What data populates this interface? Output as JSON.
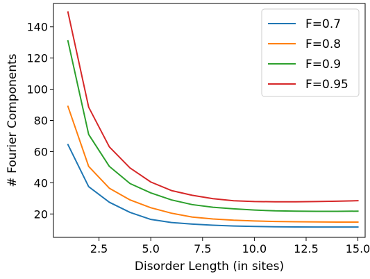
{
  "chart_data": {
    "type": "line",
    "title": "",
    "xlabel": "Disorder Length (in sites)",
    "ylabel": "# Fourier Components",
    "xlim": [
      0.3,
      15.35
    ],
    "ylim": [
      5,
      155
    ],
    "xticks": [
      2.5,
      5.0,
      7.5,
      10.0,
      12.5,
      15.0
    ],
    "xtick_labels": [
      "2.5",
      "5.0",
      "7.5",
      "10.0",
      "12.5",
      "15.0"
    ],
    "yticks": [
      20,
      40,
      60,
      80,
      100,
      120,
      140
    ],
    "ytick_labels": [
      "20",
      "40",
      "60",
      "80",
      "100",
      "120",
      "140"
    ],
    "grid": false,
    "legend_position": "top-right",
    "x": [
      1,
      2,
      3,
      4,
      5,
      6,
      7,
      8,
      9,
      10,
      11,
      12,
      13,
      14,
      15
    ],
    "series": [
      {
        "name": "F=0.7",
        "color": "#1f77b4",
        "values": [
          64.5,
          37.5,
          27.5,
          21,
          16.5,
          14.5,
          13.5,
          12.8,
          12.3,
          12,
          11.8,
          11.7,
          11.6,
          11.6,
          11.6
        ]
      },
      {
        "name": "F=0.8",
        "color": "#ff7f0e",
        "values": [
          89,
          50.5,
          36.5,
          29,
          24,
          20.5,
          18,
          16.8,
          16,
          15.5,
          15.2,
          15,
          14.9,
          14.8,
          14.8
        ]
      },
      {
        "name": "F=0.9",
        "color": "#2ca02c",
        "values": [
          131,
          71,
          50.5,
          39.5,
          33.5,
          29,
          26,
          24.3,
          23.3,
          22.5,
          22,
          21.8,
          21.7,
          21.7,
          21.8
        ]
      },
      {
        "name": "F=0.95",
        "color": "#d62728",
        "values": [
          149.5,
          88.5,
          63,
          49.5,
          40.5,
          35,
          32,
          29.8,
          28.5,
          28,
          27.8,
          27.8,
          28,
          28.2,
          28.5
        ]
      }
    ]
  }
}
